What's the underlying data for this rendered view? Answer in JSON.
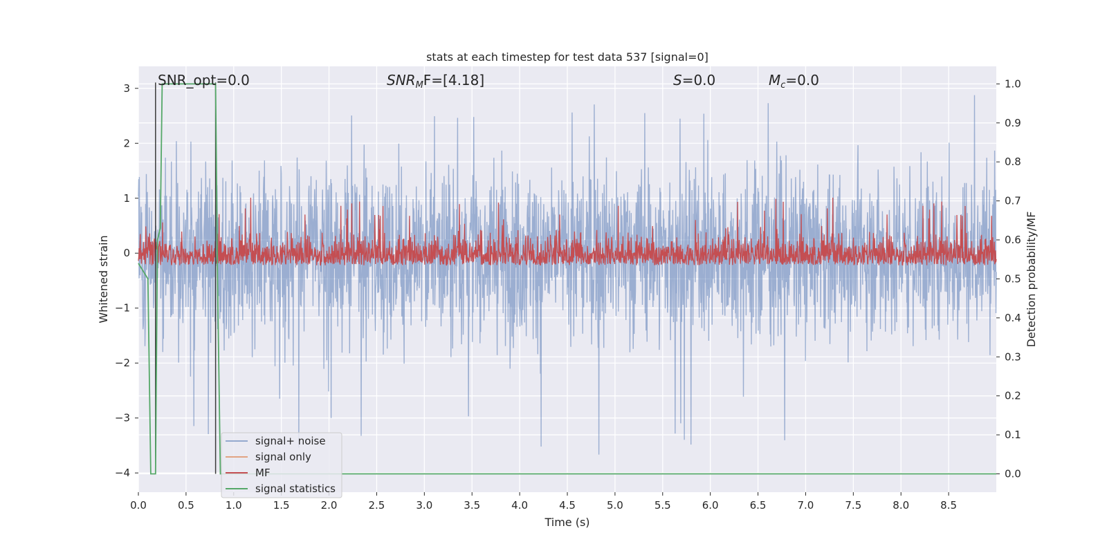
{
  "chart_data": {
    "type": "line",
    "title": "stats at each timestep for test data 537 [signal=0]",
    "xlabel": "Time (s)",
    "ylabel": "Whitened strain",
    "ylabel_right": "Detection probability/MF",
    "xlim": [
      0.0,
      9.0
    ],
    "ylim": [
      -4.35,
      3.4
    ],
    "ylim_right": [
      -0.047,
      1.045
    ],
    "xticks": [
      "0.0",
      "0.5",
      "1.0",
      "1.5",
      "2.0",
      "2.5",
      "3.0",
      "3.5",
      "4.0",
      "4.5",
      "5.0",
      "5.5",
      "6.0",
      "6.5",
      "7.0",
      "7.5",
      "8.0",
      "8.5"
    ],
    "yticks": [
      "3",
      "2",
      "1",
      "0",
      "−1",
      "−2",
      "−3",
      "−4"
    ],
    "yticks_right": [
      "1.0",
      "0.9",
      "0.8",
      "0.7",
      "0.6",
      "0.5",
      "0.4",
      "0.3",
      "0.2",
      "0.1",
      "0.0"
    ],
    "grid": true,
    "legend_position": "lower-left",
    "annotations": {
      "snr_opt": "SNR_opt=0.0",
      "snr_mf_sym": "SNR",
      "snr_mf_sub": "M",
      "snr_mf_rest": "F=[4.18]",
      "s_sym": "S",
      "s_rest": "=0.0",
      "mc_sym": "M",
      "mc_sub": "c",
      "mc_rest": "=0.0"
    },
    "vertical_lines_x": [
      0.18,
      0.81
    ],
    "series": [
      {
        "name": "signal+ noise",
        "color": "#4c72b0",
        "description": "noisy whitened strain, roughly within -2 to 2 with spikes to about 3 and -4"
      },
      {
        "name": "signal only",
        "color": "#dd8452",
        "values": "zero throughout"
      },
      {
        "name": "MF",
        "color": "#c44e52",
        "description": "matched-filter output on right axis, roughly 0.50 to 0.72"
      },
      {
        "name": "signal statistics",
        "color": "#55a868",
        "x": [
          0.0,
          0.05,
          0.1,
          0.13,
          0.18,
          0.2,
          0.23,
          0.25,
          0.3,
          0.81,
          0.83,
          0.86,
          9.0
        ],
        "y": [
          0.54,
          0.52,
          0.5,
          0.0,
          0.0,
          0.6,
          0.63,
          1.0,
          1.0,
          1.0,
          0.5,
          0.0,
          0.0
        ]
      }
    ],
    "theme": {
      "plot_bg": "#eaeaf2",
      "grid_color": "#ffffff",
      "text_color": "#262626",
      "vline_color": "#3a3a3a",
      "legend_bg": "#eaeaf2"
    }
  }
}
